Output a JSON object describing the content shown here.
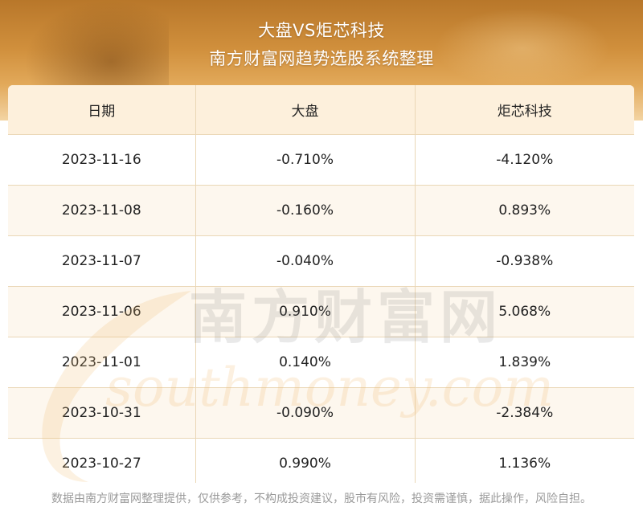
{
  "header": {
    "title": "大盘VS炬芯科技",
    "subtitle": "南方财富网趋势选股系统整理"
  },
  "table": {
    "columns": [
      "日期",
      "大盘",
      "炬芯科技"
    ],
    "rows": [
      [
        "2023-11-16",
        "-0.710%",
        "-4.120%"
      ],
      [
        "2023-11-08",
        "-0.160%",
        "0.893%"
      ],
      [
        "2023-11-07",
        "-0.040%",
        "-0.938%"
      ],
      [
        "2023-11-06",
        "0.910%",
        "5.068%"
      ],
      [
        "2023-11-01",
        "0.140%",
        "1.839%"
      ],
      [
        "2023-10-31",
        "-0.090%",
        "-2.384%"
      ],
      [
        "2023-10-27",
        "0.990%",
        "1.136%"
      ]
    ]
  },
  "watermark": {
    "cn": "南方财富网",
    "en": "southmoney.com"
  },
  "footer": {
    "disclaimer": "数据由南方财富网整理提供，仅供参考，不构成投资建议，股市有风险，投资需谨慎，据此操作，风险自担。"
  },
  "colors": {
    "banner": "#c98a38",
    "header_bg": "#fdf0dc",
    "border": "#ead7b6",
    "disclaimer": "#9a9a9a"
  }
}
